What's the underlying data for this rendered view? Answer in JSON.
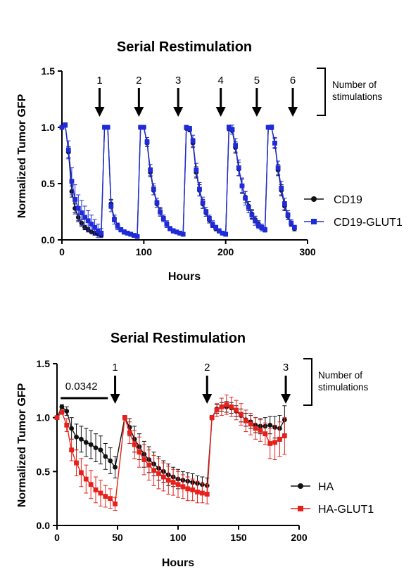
{
  "chart_data": [
    {
      "type": "line",
      "title": "Serial Restimulation",
      "xlabel": "Hours",
      "ylabel": "Normalized Tumor GFP",
      "xlim": [
        0,
        300
      ],
      "ylim": [
        0,
        1.5
      ],
      "xticks": [
        "0",
        "100",
        "200",
        "300"
      ],
      "yticks": [
        "0.0",
        "0.5",
        "1.0",
        "1.5"
      ],
      "legend_position": "right",
      "bracket_label": "Number of stimulations",
      "stim_arrows": [
        {
          "label": "1",
          "x": 46
        },
        {
          "label": "2",
          "x": 94
        },
        {
          "label": "3",
          "x": 142
        },
        {
          "label": "4",
          "x": 194
        },
        {
          "label": "5",
          "x": 238
        },
        {
          "label": "6",
          "x": 282
        }
      ],
      "colors": {
        "CD19": "#111111",
        "CD19-GLUT1": "#1f2bd9"
      },
      "series": [
        {
          "name": "CD19",
          "marker": "circle",
          "x": [
            0,
            4,
            8,
            12,
            16,
            20,
            24,
            28,
            32,
            36,
            40,
            44,
            48,
            52,
            56,
            60,
            64,
            68,
            72,
            76,
            80,
            84,
            88,
            92,
            96,
            100,
            104,
            108,
            112,
            116,
            120,
            124,
            128,
            132,
            136,
            140,
            144,
            148,
            152,
            156,
            160,
            164,
            168,
            172,
            176,
            180,
            184,
            188,
            192,
            196,
            200,
            204,
            208,
            212,
            216,
            220,
            224,
            228,
            232,
            236,
            240,
            244,
            248,
            252,
            256,
            260,
            264,
            268,
            272,
            276,
            280,
            284
          ],
          "y": [
            1.0,
            1.02,
            0.78,
            0.43,
            0.28,
            0.2,
            0.15,
            0.11,
            0.09,
            0.07,
            0.06,
            0.05,
            0.04,
            1.0,
            1.0,
            0.32,
            0.19,
            0.13,
            0.09,
            0.07,
            0.06,
            0.05,
            0.04,
            0.03,
            1.0,
            1.0,
            0.86,
            0.6,
            0.44,
            0.32,
            0.25,
            0.19,
            0.14,
            0.1,
            0.08,
            0.07,
            0.06,
            0.05,
            0.99,
            0.98,
            0.86,
            0.6,
            0.44,
            0.32,
            0.24,
            0.18,
            0.13,
            0.1,
            0.08,
            0.06,
            0.05,
            0.99,
            0.97,
            0.82,
            0.63,
            0.48,
            0.38,
            0.3,
            0.23,
            0.18,
            0.14,
            0.11,
            0.09,
            1.0,
            1.0,
            0.86,
            0.62,
            0.44,
            0.3,
            0.21,
            0.14,
            0.1
          ],
          "err": [
            0,
            0.02,
            0.05,
            0.05,
            0.04,
            0.03,
            0.03,
            0.02,
            0.02,
            0.01,
            0.01,
            0.01,
            0.01,
            0.01,
            0.01,
            0.04,
            0.03,
            0.02,
            0.01,
            0.01,
            0.01,
            0.01,
            0.01,
            0.01,
            0.01,
            0.01,
            0.03,
            0.04,
            0.04,
            0.03,
            0.03,
            0.02,
            0.02,
            0.01,
            0.01,
            0.01,
            0.01,
            0.01,
            0.01,
            0.02,
            0.04,
            0.05,
            0.05,
            0.04,
            0.03,
            0.03,
            0.02,
            0.02,
            0.01,
            0.01,
            0.01,
            0.02,
            0.03,
            0.05,
            0.06,
            0.06,
            0.05,
            0.04,
            0.04,
            0.03,
            0.03,
            0.02,
            0.02,
            0.01,
            0.02,
            0.04,
            0.05,
            0.05,
            0.04,
            0.03,
            0.02,
            0.02
          ]
        },
        {
          "name": "CD19-GLUT1",
          "marker": "square",
          "x": [
            0,
            4,
            8,
            12,
            16,
            20,
            24,
            28,
            32,
            36,
            40,
            44,
            48,
            52,
            56,
            60,
            64,
            68,
            72,
            76,
            80,
            84,
            88,
            92,
            96,
            100,
            104,
            108,
            112,
            116,
            120,
            124,
            128,
            132,
            136,
            140,
            144,
            148,
            152,
            156,
            160,
            164,
            168,
            172,
            176,
            180,
            184,
            188,
            192,
            196,
            200,
            204,
            208,
            212,
            216,
            220,
            224,
            228,
            232,
            236,
            240,
            244,
            248,
            252,
            256,
            260,
            264,
            268,
            272,
            276,
            280,
            284
          ],
          "y": [
            1.0,
            1.02,
            0.8,
            0.52,
            0.36,
            0.28,
            0.24,
            0.2,
            0.17,
            0.14,
            0.11,
            0.08,
            0.06,
            1.0,
            1.0,
            0.3,
            0.18,
            0.12,
            0.09,
            0.07,
            0.06,
            0.05,
            0.04,
            0.03,
            1.0,
            1.0,
            0.87,
            0.62,
            0.45,
            0.33,
            0.25,
            0.19,
            0.14,
            0.1,
            0.08,
            0.07,
            0.06,
            0.05,
            1.0,
            0.99,
            0.88,
            0.62,
            0.45,
            0.33,
            0.25,
            0.19,
            0.14,
            0.11,
            0.08,
            0.06,
            0.05,
            1.0,
            0.98,
            0.84,
            0.64,
            0.48,
            0.37,
            0.29,
            0.22,
            0.17,
            0.13,
            0.11,
            0.09,
            1.0,
            1.0,
            0.86,
            0.64,
            0.46,
            0.32,
            0.22,
            0.15,
            0.11
          ],
          "err": [
            0,
            0.02,
            0.08,
            0.12,
            0.13,
            0.12,
            0.11,
            0.1,
            0.09,
            0.08,
            0.07,
            0.06,
            0.04,
            0.01,
            0.01,
            0.05,
            0.04,
            0.03,
            0.02,
            0.02,
            0.01,
            0.01,
            0.01,
            0.01,
            0.01,
            0.01,
            0.04,
            0.05,
            0.05,
            0.04,
            0.04,
            0.03,
            0.03,
            0.02,
            0.02,
            0.01,
            0.01,
            0.01,
            0.01,
            0.02,
            0.05,
            0.06,
            0.06,
            0.05,
            0.04,
            0.03,
            0.03,
            0.02,
            0.02,
            0.01,
            0.01,
            0.02,
            0.04,
            0.06,
            0.07,
            0.07,
            0.06,
            0.05,
            0.04,
            0.04,
            0.03,
            0.03,
            0.02,
            0.01,
            0.02,
            0.05,
            0.06,
            0.06,
            0.05,
            0.04,
            0.03,
            0.02
          ]
        }
      ]
    },
    {
      "type": "line",
      "title": "Serial Restimulation",
      "xlabel": "Hours",
      "ylabel": "Normalized Tumor GFP",
      "xlim": [
        0,
        200
      ],
      "ylim": [
        0,
        1.5
      ],
      "xticks": [
        "0",
        "50",
        "100",
        "150",
        "200"
      ],
      "yticks": [
        "0.0",
        "0.5",
        "1.0",
        "1.5"
      ],
      "legend_position": "right",
      "bracket_label": "Number of stimulations",
      "significance": {
        "label": "0.0342",
        "x_start": 3,
        "x_end": 42
      },
      "stim_arrows": [
        {
          "label": "1",
          "x": 48
        },
        {
          "label": "2",
          "x": 124
        },
        {
          "label": "3",
          "x": 189
        }
      ],
      "colors": {
        "HA": "#111111",
        "HA-GLUT1": "#e8201b"
      },
      "series": [
        {
          "name": "HA",
          "marker": "circle",
          "x": [
            0,
            4,
            8,
            12,
            16,
            20,
            24,
            28,
            32,
            36,
            40,
            44,
            48,
            56,
            60,
            64,
            68,
            72,
            76,
            80,
            84,
            88,
            92,
            96,
            100,
            104,
            108,
            112,
            116,
            120,
            124,
            128,
            132,
            136,
            140,
            144,
            148,
            152,
            156,
            160,
            164,
            168,
            172,
            176,
            180,
            184,
            188
          ],
          "y": [
            1.0,
            1.1,
            1.06,
            0.9,
            0.82,
            0.8,
            0.77,
            0.75,
            0.72,
            0.7,
            0.64,
            0.6,
            0.54,
            1.0,
            0.91,
            0.8,
            0.73,
            0.66,
            0.61,
            0.57,
            0.53,
            0.5,
            0.47,
            0.45,
            0.43,
            0.42,
            0.41,
            0.4,
            0.39,
            0.38,
            0.37,
            1.0,
            1.08,
            1.1,
            1.1,
            1.09,
            1.06,
            1.02,
            0.98,
            0.96,
            0.93,
            0.92,
            0.92,
            0.93,
            0.91,
            0.9,
            0.98
          ],
          "err": [
            0,
            0.02,
            0.04,
            0.1,
            0.12,
            0.12,
            0.13,
            0.13,
            0.13,
            0.13,
            0.12,
            0.12,
            0.1,
            0.02,
            0.08,
            0.12,
            0.12,
            0.12,
            0.12,
            0.11,
            0.11,
            0.1,
            0.1,
            0.09,
            0.09,
            0.08,
            0.08,
            0.08,
            0.07,
            0.07,
            0.07,
            0.02,
            0.04,
            0.04,
            0.05,
            0.05,
            0.05,
            0.06,
            0.06,
            0.06,
            0.07,
            0.07,
            0.08,
            0.08,
            0.1,
            0.12,
            0.13
          ]
        },
        {
          "name": "HA-GLUT1",
          "marker": "square",
          "x": [
            0,
            4,
            8,
            12,
            16,
            20,
            24,
            28,
            32,
            36,
            40,
            44,
            48,
            56,
            60,
            64,
            68,
            72,
            76,
            80,
            84,
            88,
            92,
            96,
            100,
            104,
            108,
            112,
            116,
            120,
            124,
            128,
            132,
            136,
            140,
            144,
            148,
            152,
            156,
            160,
            164,
            168,
            172,
            176,
            180,
            184,
            188
          ],
          "y": [
            1.0,
            1.05,
            0.93,
            0.7,
            0.58,
            0.49,
            0.43,
            0.38,
            0.33,
            0.3,
            0.27,
            0.25,
            0.2,
            1.0,
            0.86,
            0.75,
            0.68,
            0.61,
            0.56,
            0.51,
            0.48,
            0.45,
            0.42,
            0.4,
            0.38,
            0.36,
            0.34,
            0.33,
            0.31,
            0.3,
            0.29,
            1.0,
            1.07,
            1.1,
            1.12,
            1.1,
            1.07,
            1.03,
            0.97,
            0.94,
            0.9,
            0.88,
            0.85,
            0.76,
            0.77,
            0.8,
            0.83
          ],
          "err": [
            0,
            0.02,
            0.06,
            0.1,
            0.12,
            0.13,
            0.13,
            0.13,
            0.12,
            0.12,
            0.1,
            0.09,
            0.06,
            0.02,
            0.1,
            0.13,
            0.14,
            0.14,
            0.14,
            0.14,
            0.14,
            0.13,
            0.13,
            0.12,
            0.12,
            0.11,
            0.11,
            0.1,
            0.1,
            0.09,
            0.09,
            0.02,
            0.06,
            0.08,
            0.09,
            0.09,
            0.09,
            0.1,
            0.1,
            0.1,
            0.1,
            0.1,
            0.1,
            0.14,
            0.16,
            0.16,
            0.17
          ]
        }
      ]
    }
  ]
}
